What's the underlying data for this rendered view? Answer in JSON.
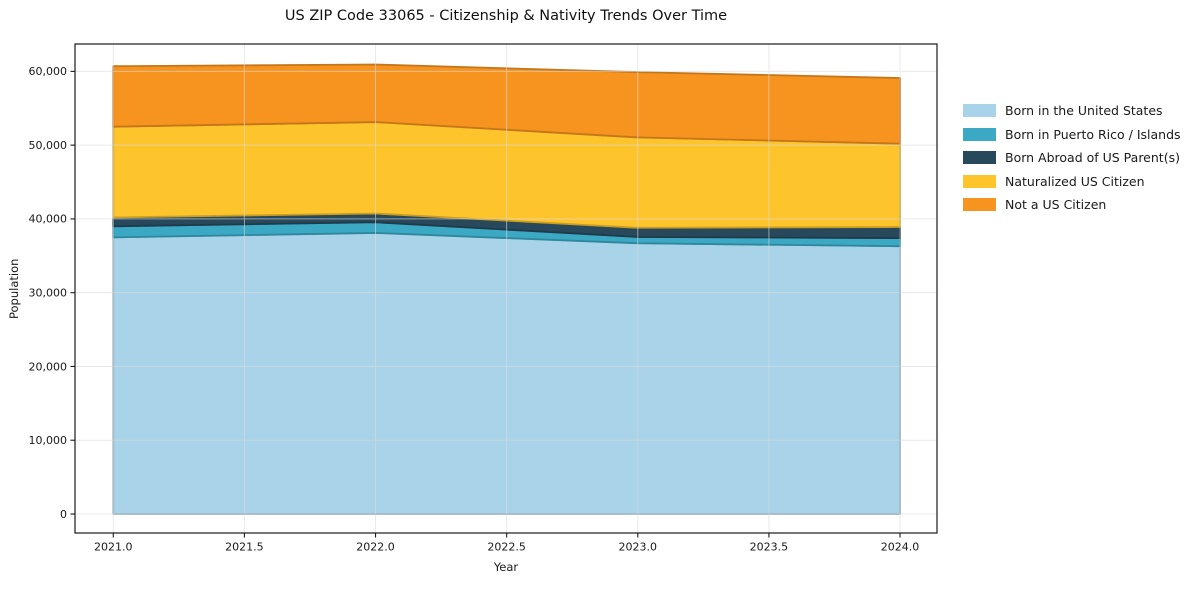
{
  "chart_data": {
    "type": "area",
    "stacked": true,
    "title": "US ZIP Code 33065 - Citizenship & Nativity Trends Over Time",
    "xlabel": "Year",
    "ylabel": "Population",
    "x": [
      2021,
      2022,
      2023,
      2024
    ],
    "series": [
      {
        "name": "Born in the United States",
        "color": "#a8d3e8",
        "values": [
          37500,
          38100,
          36700,
          36300
        ]
      },
      {
        "name": "Born in Puerto Rico / Islands",
        "color": "#3ba8c4",
        "values": [
          1500,
          1450,
          850,
          1100
        ]
      },
      {
        "name": "Born Abroad of US Parent(s)",
        "color": "#28495c",
        "values": [
          1200,
          1180,
          1250,
          1500
        ]
      },
      {
        "name": "Naturalized US Citizen",
        "color": "#fdc42c",
        "values": [
          12300,
          12400,
          12250,
          11300
        ]
      },
      {
        "name": "Not a US Citizen",
        "color": "#f79420",
        "values": [
          8200,
          7800,
          8850,
          8900
        ]
      }
    ],
    "xlim": [
      2020.854,
      2024.141
    ],
    "ylim": [
      -2576,
      63711
    ],
    "x_ticks": {
      "values": [
        2021.0,
        2021.5,
        2022.0,
        2022.5,
        2023.0,
        2023.5,
        2024.0
      ],
      "labels": [
        "2021.0",
        "2021.5",
        "2022.0",
        "2022.5",
        "2023.0",
        "2023.5",
        "2024.0"
      ]
    },
    "y_ticks": {
      "values": [
        0,
        10000,
        20000,
        30000,
        40000,
        50000,
        60000
      ],
      "labels": [
        "0",
        "10,000",
        "20,000",
        "30,000",
        "40,000",
        "50,000",
        "60,000"
      ]
    },
    "grid": true,
    "legend_position": "right-outside",
    "colors": {
      "spine": "#1a1a1a",
      "gridline": "#dcdcdc",
      "background": "#ffffff"
    }
  }
}
